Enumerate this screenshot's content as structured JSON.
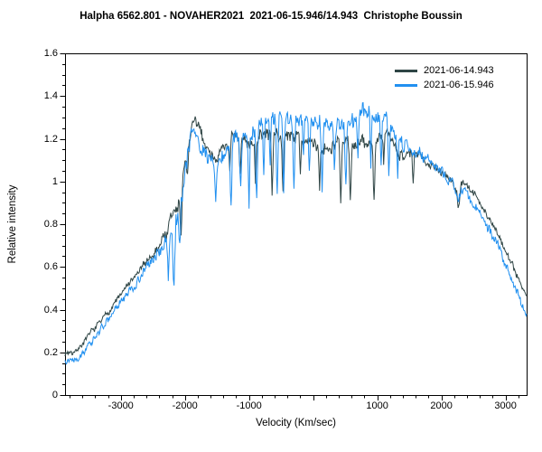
{
  "title": "Halpha 6562.801 - NOVAHER2021  2021-06-15.946/14.943  Christophe Boussin",
  "colors": {
    "background": "#ffffff",
    "axis": "#000000",
    "text": "#000000"
  },
  "chart_data": {
    "type": "line",
    "title": "Halpha 6562.801 - NOVAHER2021  2021-06-15.946/14.943  Christophe Boussin",
    "xlabel": "Velocity (Km/sec)",
    "ylabel": "Relative intensity",
    "xlim": [
      -3870,
      3330
    ],
    "ylim": [
      0,
      1.6
    ],
    "grid": false,
    "legend_position": "top-right",
    "x_major_ticks": [
      -3000,
      -2000,
      -1000,
      0,
      1000,
      2000,
      3000
    ],
    "x_tick_labels": [
      "-3000",
      "-2000",
      "-1000",
      "",
      "1000",
      "2000",
      "3000"
    ],
    "x_minor_step": 200,
    "y_major_ticks": [
      0,
      0.2,
      0.4,
      0.6,
      0.8,
      1,
      1.2,
      1.4,
      1.6
    ],
    "y_tick_labels": [
      "0",
      "0.2",
      "0.4",
      "0.6",
      "0.8",
      "1",
      "1.2",
      "1.4",
      "1.6"
    ],
    "y_minor_step": 0.05,
    "noise_profile": [
      [
        -3870,
        0.013
      ],
      [
        -2600,
        0.018
      ],
      [
        -2150,
        0.05
      ],
      [
        -1800,
        0.035
      ],
      [
        -1500,
        0.03
      ],
      [
        -800,
        0.035
      ],
      [
        0,
        0.035
      ],
      [
        1000,
        0.037
      ],
      [
        1600,
        0.026
      ],
      [
        2300,
        0.02
      ],
      [
        3330,
        0.016
      ]
    ],
    "series": [
      {
        "name": "2021-06-14.943",
        "color": "#2f4545",
        "seed": 7,
        "noise_scale": 1.0,
        "envelope": [
          [
            -3870,
            0.195
          ],
          [
            -3700,
            0.21
          ],
          [
            -3550,
            0.26
          ],
          [
            -3400,
            0.31
          ],
          [
            -3250,
            0.37
          ],
          [
            -3100,
            0.43
          ],
          [
            -2950,
            0.49
          ],
          [
            -2800,
            0.545
          ],
          [
            -2650,
            0.6
          ],
          [
            -2500,
            0.66
          ],
          [
            -2400,
            0.7
          ],
          [
            -2300,
            0.76
          ],
          [
            -2200,
            0.83
          ],
          [
            -2100,
            0.9
          ],
          [
            -2030,
            1.02
          ],
          [
            -1960,
            1.16
          ],
          [
            -1880,
            1.27
          ],
          [
            -1820,
            1.26
          ],
          [
            -1740,
            1.22
          ],
          [
            -1650,
            1.16
          ],
          [
            -1550,
            1.12
          ],
          [
            -1450,
            1.13
          ],
          [
            -1350,
            1.18
          ],
          [
            -1250,
            1.2
          ],
          [
            -1100,
            1.18
          ],
          [
            -950,
            1.2
          ],
          [
            -800,
            1.21
          ],
          [
            -650,
            1.22
          ],
          [
            -500,
            1.21
          ],
          [
            -350,
            1.22
          ],
          [
            -200,
            1.21
          ],
          [
            -50,
            1.18
          ],
          [
            100,
            1.16
          ],
          [
            250,
            1.17
          ],
          [
            400,
            1.19
          ],
          [
            550,
            1.17
          ],
          [
            700,
            1.18
          ],
          [
            850,
            1.17
          ],
          [
            1000,
            1.2
          ],
          [
            1150,
            1.21
          ],
          [
            1300,
            1.16
          ],
          [
            1450,
            1.13
          ],
          [
            1600,
            1.12
          ],
          [
            1750,
            1.1
          ],
          [
            1900,
            1.08
          ],
          [
            2050,
            1.04
          ],
          [
            2200,
            0.98
          ],
          [
            2260,
            0.94
          ],
          [
            2330,
            1.01
          ],
          [
            2450,
            0.96
          ],
          [
            2600,
            0.9
          ],
          [
            2750,
            0.83
          ],
          [
            2900,
            0.74
          ],
          [
            3050,
            0.65
          ],
          [
            3200,
            0.55
          ],
          [
            3330,
            0.47
          ]
        ],
        "dips": [
          [
            -2060,
            0.25,
            25
          ],
          [
            -1960,
            0.15,
            20
          ],
          [
            -1300,
            0.15,
            20
          ],
          [
            -1140,
            0.18,
            20
          ],
          [
            -900,
            0.2,
            22
          ],
          [
            -640,
            0.25,
            22
          ],
          [
            -470,
            0.28,
            25
          ],
          [
            -200,
            0.15,
            18
          ],
          [
            100,
            0.18,
            20
          ],
          [
            430,
            0.3,
            25
          ],
          [
            580,
            0.28,
            25
          ],
          [
            950,
            0.28,
            25
          ],
          [
            1100,
            0.15,
            18
          ],
          [
            1560,
            0.15,
            18
          ],
          [
            2270,
            0.08,
            25
          ]
        ]
      },
      {
        "name": "2021-06-15.946",
        "color": "#2190f0",
        "seed": 13,
        "noise_scale": 1.2,
        "envelope": [
          [
            -3870,
            0.165
          ],
          [
            -3700,
            0.18
          ],
          [
            -3550,
            0.22
          ],
          [
            -3400,
            0.27
          ],
          [
            -3250,
            0.33
          ],
          [
            -3100,
            0.39
          ],
          [
            -2950,
            0.45
          ],
          [
            -2800,
            0.51
          ],
          [
            -2650,
            0.57
          ],
          [
            -2500,
            0.635
          ],
          [
            -2400,
            0.68
          ],
          [
            -2300,
            0.73
          ],
          [
            -2200,
            0.79
          ],
          [
            -2100,
            0.85
          ],
          [
            -2030,
            0.97
          ],
          [
            -1960,
            1.12
          ],
          [
            -1880,
            1.23
          ],
          [
            -1820,
            1.22
          ],
          [
            -1740,
            1.18
          ],
          [
            -1650,
            1.12
          ],
          [
            -1550,
            1.08
          ],
          [
            -1450,
            1.1
          ],
          [
            -1350,
            1.15
          ],
          [
            -1250,
            1.18
          ],
          [
            -1100,
            1.21
          ],
          [
            -950,
            1.24
          ],
          [
            -800,
            1.27
          ],
          [
            -650,
            1.28
          ],
          [
            -500,
            1.27
          ],
          [
            -350,
            1.29
          ],
          [
            -200,
            1.3
          ],
          [
            -50,
            1.28
          ],
          [
            100,
            1.26
          ],
          [
            250,
            1.24
          ],
          [
            400,
            1.27
          ],
          [
            550,
            1.28
          ],
          [
            700,
            1.3
          ],
          [
            850,
            1.31
          ],
          [
            1000,
            1.33
          ],
          [
            1100,
            1.32
          ],
          [
            1250,
            1.25
          ],
          [
            1400,
            1.18
          ],
          [
            1550,
            1.14
          ],
          [
            1700,
            1.12
          ],
          [
            1850,
            1.1
          ],
          [
            2000,
            1.06
          ],
          [
            2150,
            1.0
          ],
          [
            2260,
            0.93
          ],
          [
            2320,
            0.98
          ],
          [
            2450,
            0.92
          ],
          [
            2600,
            0.85
          ],
          [
            2750,
            0.77
          ],
          [
            2900,
            0.68
          ],
          [
            3050,
            0.58
          ],
          [
            3200,
            0.47
          ],
          [
            3330,
            0.36
          ]
        ],
        "dips": [
          [
            -2260,
            0.22,
            30
          ],
          [
            -2170,
            0.3,
            30
          ],
          [
            -2080,
            0.18,
            25
          ],
          [
            -1520,
            0.18,
            25
          ],
          [
            -1280,
            0.3,
            25
          ],
          [
            -1130,
            0.22,
            25
          ],
          [
            -1000,
            0.3,
            22
          ],
          [
            -880,
            0.35,
            25
          ],
          [
            -770,
            0.25,
            22
          ],
          [
            -670,
            0.2,
            22
          ],
          [
            -560,
            0.35,
            25
          ],
          [
            -460,
            0.32,
            24
          ],
          [
            -300,
            0.3,
            25
          ],
          [
            -150,
            0.18,
            20
          ],
          [
            -60,
            0.25,
            22
          ],
          [
            140,
            0.3,
            25
          ],
          [
            330,
            0.2,
            22
          ],
          [
            510,
            0.28,
            25
          ],
          [
            700,
            0.18,
            20
          ],
          [
            900,
            0.22,
            22
          ],
          [
            1060,
            0.25,
            22
          ],
          [
            1180,
            0.25,
            22
          ],
          [
            1320,
            0.18,
            20
          ]
        ]
      }
    ]
  }
}
